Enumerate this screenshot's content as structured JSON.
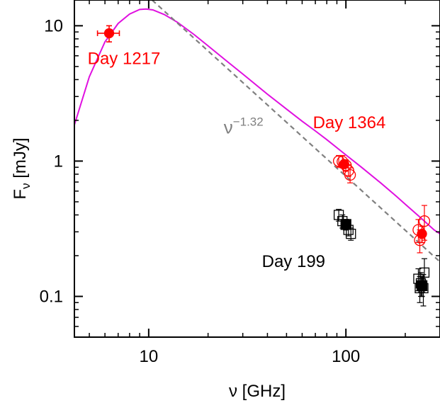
{
  "chart_data": {
    "type": "scatter",
    "xscale": "log",
    "yscale": "log",
    "xlim": [
      4.2,
      300
    ],
    "ylim": [
      0.05,
      15.5
    ],
    "xlabel": "ν [GHz]",
    "ylabel": "F",
    "ylabel_sub": "ν",
    "ylabel_unit": " [mJy]",
    "xticks": [
      {
        "value": 10,
        "label": "10"
      },
      {
        "value": 100,
        "label": "100"
      }
    ],
    "yticks": [
      {
        "value": 0.1,
        "label": "0.1"
      },
      {
        "value": 1,
        "label": "1"
      },
      {
        "value": 10,
        "label": "10"
      }
    ],
    "grid": false,
    "colors": {
      "day1217": "#ff0000",
      "day1364": "#ff0000",
      "day199": "#000000",
      "model": "#e010e0",
      "powerlaw": "#808080"
    },
    "annotations": [
      {
        "id": "label-day1217",
        "text": "Day 1217",
        "x": 4.9,
        "y": 5.2,
        "color": "#ff0000"
      },
      {
        "id": "label-day1364",
        "text": "Day 1364",
        "x": 68,
        "y": 1.75,
        "color": "#ff0000"
      },
      {
        "id": "label-day199",
        "text": "Day 199",
        "x": 37.5,
        "y": 0.165,
        "color": "#000000"
      }
    ],
    "powerlaw_label": {
      "base": "ν",
      "exponent": "−1.32",
      "x": 24,
      "y": 1.6,
      "color": "#808080"
    },
    "series": [
      {
        "name": "Day 1217",
        "kind": "points",
        "color": "#ff0000",
        "points": [
          {
            "x": 6.3,
            "y": 8.8,
            "xerr": 0.8,
            "ylo": 7.6,
            "yhi": 10.0,
            "filled": true
          }
        ]
      },
      {
        "name": "Day 1364",
        "kind": "points",
        "color": "#ff0000",
        "points": [
          {
            "x": 92,
            "y": 1.0,
            "ylo": 0.9,
            "yhi": 1.1,
            "filled": false
          },
          {
            "x": 96,
            "y": 0.99,
            "ylo": 0.89,
            "yhi": 1.1,
            "filled": false
          },
          {
            "x": 100,
            "y": 0.93,
            "ylo": 0.84,
            "yhi": 1.02,
            "filled": false
          },
          {
            "x": 103,
            "y": 0.85,
            "ylo": 0.77,
            "yhi": 0.94,
            "filled": false
          },
          {
            "x": 105,
            "y": 0.79,
            "ylo": 0.69,
            "yhi": 0.89,
            "filled": false
          },
          {
            "x": 98,
            "y": 0.95,
            "ylo": 0.9,
            "yhi": 1.0,
            "filled": true
          },
          {
            "x": 233,
            "y": 0.31,
            "ylo": 0.25,
            "yhi": 0.37,
            "filled": false
          },
          {
            "x": 237,
            "y": 0.26,
            "ylo": 0.21,
            "yhi": 0.31,
            "filled": false
          },
          {
            "x": 250,
            "y": 0.36,
            "ylo": 0.26,
            "yhi": 0.47,
            "filled": false
          },
          {
            "x": 243,
            "y": 0.29,
            "ylo": 0.25,
            "yhi": 0.33,
            "filled": true
          }
        ]
      },
      {
        "name": "Day 199",
        "kind": "points",
        "color": "#000000",
        "points": [
          {
            "x": 92,
            "y": 0.4,
            "ylo": 0.36,
            "yhi": 0.44,
            "filled": false
          },
          {
            "x": 96,
            "y": 0.36,
            "ylo": 0.32,
            "yhi": 0.4,
            "filled": false
          },
          {
            "x": 103,
            "y": 0.31,
            "ylo": 0.28,
            "yhi": 0.34,
            "filled": false
          },
          {
            "x": 106,
            "y": 0.29,
            "ylo": 0.26,
            "yhi": 0.32,
            "filled": false
          },
          {
            "x": 100,
            "y": 0.34,
            "ylo": 0.31,
            "yhi": 0.37,
            "filled": true
          },
          {
            "x": 233,
            "y": 0.135,
            "ylo": 0.11,
            "yhi": 0.16,
            "filled": false
          },
          {
            "x": 237,
            "y": 0.115,
            "ylo": 0.09,
            "yhi": 0.14,
            "filled": false
          },
          {
            "x": 240,
            "y": 0.125,
            "ylo": 0.1,
            "yhi": 0.15,
            "filled": false
          },
          {
            "x": 250,
            "y": 0.15,
            "ylo": 0.12,
            "yhi": 0.19,
            "filled": false
          },
          {
            "x": 247,
            "y": 0.115,
            "ylo": 0.085,
            "yhi": 0.145,
            "filled": false
          },
          {
            "x": 243,
            "y": 0.12,
            "ylo": 0.1,
            "yhi": 0.14,
            "filled": true
          }
        ]
      },
      {
        "name": "",
        "kind": "curve",
        "style": "solid",
        "color": "#e010e0",
        "x": [
          4.2,
          5,
          6,
          7,
          8,
          9,
          9.7,
          10.5,
          12,
          14,
          17,
          20,
          25,
          30,
          40,
          50,
          60,
          70,
          80,
          100,
          120,
          150,
          180,
          200,
          240,
          280,
          300
        ],
        "y": [
          1.85,
          4.2,
          7.6,
          10.4,
          12.2,
          13.2,
          13.3,
          13.1,
          12.1,
          10.6,
          8.6,
          7.1,
          5.45,
          4.4,
          3.12,
          2.42,
          1.97,
          1.67,
          1.44,
          1.11,
          0.9,
          0.69,
          0.55,
          0.48,
          0.38,
          0.31,
          0.29
        ]
      },
      {
        "name": "",
        "kind": "line",
        "style": "dashed",
        "color": "#808080",
        "x": [
          10.4,
          300
        ],
        "y": [
          15.5,
          0.18
        ]
      }
    ]
  }
}
